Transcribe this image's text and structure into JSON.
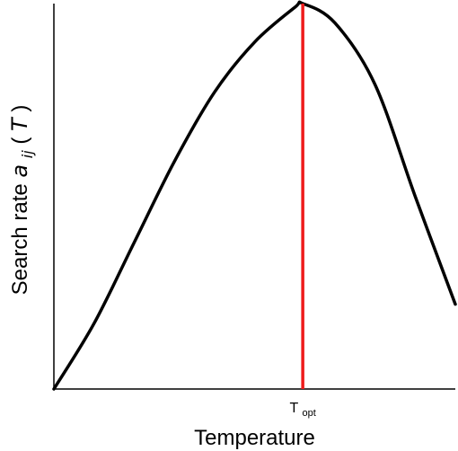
{
  "chart_data": {
    "type": "line",
    "xlabel": "Temperature",
    "ylabel": {
      "text": "Search rate",
      "symbol": "a",
      "subscript": "ij",
      "argument": "T",
      "open_paren": "(",
      "close_paren": ")"
    },
    "xlim": [
      0,
      100
    ],
    "ylim": [
      0,
      100
    ],
    "x_ticks": [],
    "y_ticks": [],
    "grid": false,
    "legend": "none",
    "series": [
      {
        "color": "#000000",
        "x": [
          0,
          10,
          20,
          30,
          40,
          50,
          60,
          62,
          70,
          80,
          90,
          100
        ],
        "y": [
          0,
          17,
          38,
          59,
          77,
          90,
          99,
          100,
          95,
          79,
          50,
          22
        ]
      }
    ],
    "reference_line": {
      "x": 62,
      "label": "T",
      "label_subscript": "opt",
      "color": "#ee1c1c"
    }
  }
}
